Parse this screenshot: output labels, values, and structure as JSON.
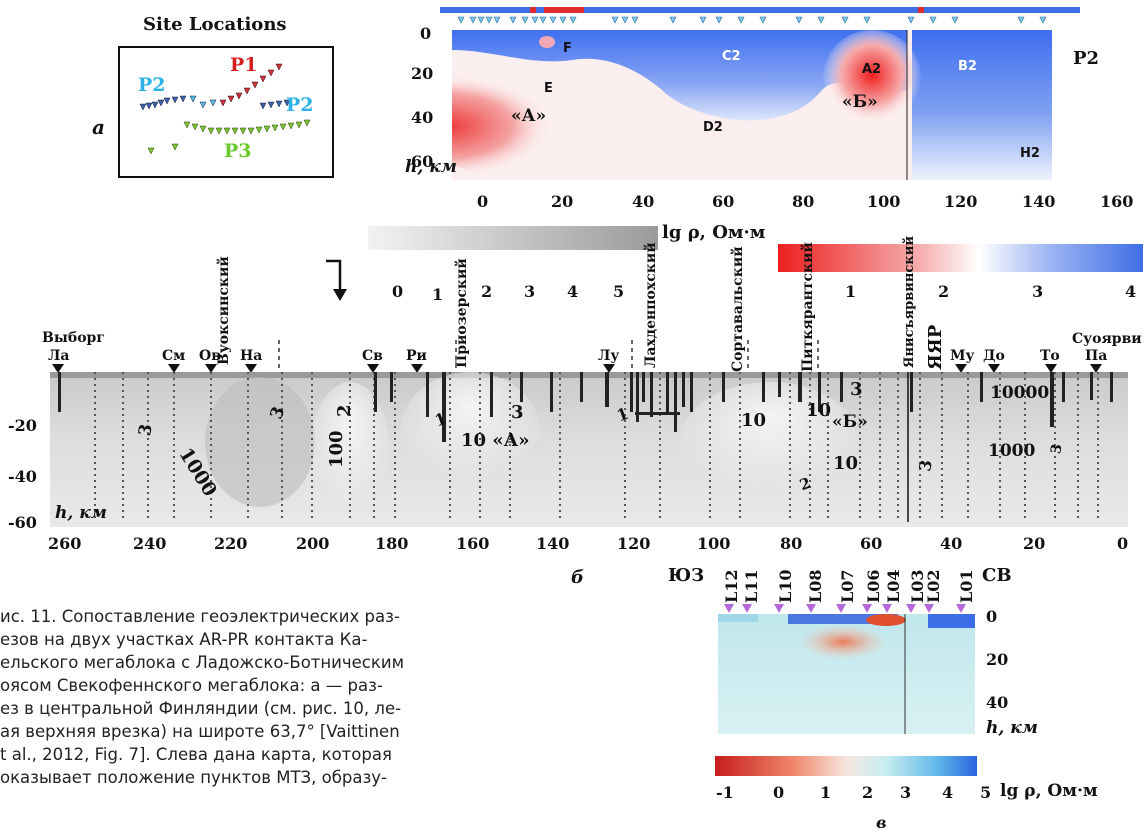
{
  "panel_a": {
    "label": "а",
    "map": {
      "title": "Site Locations",
      "labels": {
        "p1": "P1",
        "p2_left": "P2",
        "p2_right": "P2",
        "p3": "P3"
      },
      "colors": {
        "p1": "#d62020",
        "p2": "#2bb3e8",
        "p3": "#6ac92a"
      }
    },
    "section": {
      "profile": "P2",
      "depth_label": "h, км",
      "y_ticks": [
        "0",
        "20",
        "40",
        "60"
      ],
      "x_ticks": [
        "0",
        "20",
        "40",
        "60",
        "80",
        "100",
        "120",
        "140",
        "160"
      ],
      "regions": {
        "F": "F",
        "C2": "C2",
        "E": "E",
        "A2": "A2",
        "B2": "B2",
        "A": "«А»",
        "B": "«Б»",
        "D2": "D2",
        "H2": "H2"
      }
    },
    "colorbar": {
      "label": "lg ρ, Ом·м",
      "ticks": [
        "1",
        "2",
        "3",
        "4"
      ]
    }
  },
  "panel_b": {
    "label": "б",
    "gray_scale_ticks": [
      "0",
      "1",
      "2",
      "3",
      "4",
      "5"
    ],
    "depth_label": "h, км",
    "y_ticks": [
      "-20",
      "-40",
      "-60"
    ],
    "x_ticks": [
      "260",
      "240",
      "220",
      "200",
      "180",
      "160",
      "140",
      "120",
      "100",
      "80",
      "60",
      "40",
      "20",
      "0"
    ],
    "top_labels": {
      "vyborg": "Выборг",
      "suoyarvi": "Суоярви"
    },
    "stations": [
      "Ла",
      "См",
      "Ов",
      "На",
      "Св",
      "Ри",
      "Лу",
      "Му",
      "До",
      "То",
      "Па"
    ],
    "zones": [
      "Вуоксинский",
      "Приозерский",
      "Лахденпохский",
      "Сортавальский",
      "Питкярантский",
      "Янисъярвинский"
    ],
    "yar": "ЯЯР",
    "values": {
      "v1000": "1000",
      "v100": "100",
      "v2a": "2",
      "v3a": "3",
      "v3b": "3",
      "v1a": "1",
      "v1b": "1",
      "v3c": "3",
      "v10A": "10 «А»",
      "v10a": "10",
      "v10b": "10",
      "vB": "«Б»",
      "v3d": "3",
      "v10c": "10",
      "v2b": "2",
      "v10000": "10000",
      "v1000b": "1000",
      "v3e": "3",
      "v3f": "3"
    }
  },
  "panel_v": {
    "label": "в",
    "sw": "ЮЗ",
    "ne": "СВ",
    "stations": [
      "L12",
      "L11",
      "L10",
      "L08",
      "L07",
      "L06",
      "L04",
      "L03",
      "L02",
      "L01"
    ],
    "y_ticks": [
      "0",
      "20",
      "40"
    ],
    "depth_label": "h, км",
    "colorbar": {
      "label": "lg ρ, Ом·м",
      "ticks": [
        "-1",
        "0",
        "1",
        "2",
        "3",
        "4",
        "5"
      ]
    }
  },
  "caption": {
    "lines": [
      "ис. 11. Сопоставление геоэлектрических раз-",
      "езов на двух участках AR-PR контакта Ка-",
      "ельского мегаблока с Ладожско-Ботническим",
      "оясом Свекофеннского мегаблока: а — раз-",
      "ез в центральной Финляндии (см. рис. 10, ле-",
      "ая верхняя врезка) на широте 63,7° [Vaittinen",
      "t al., 2012, Fig. 7]. Слева дана карта, которая",
      "оказывает положение пунктов МТЗ, образу-"
    ]
  }
}
